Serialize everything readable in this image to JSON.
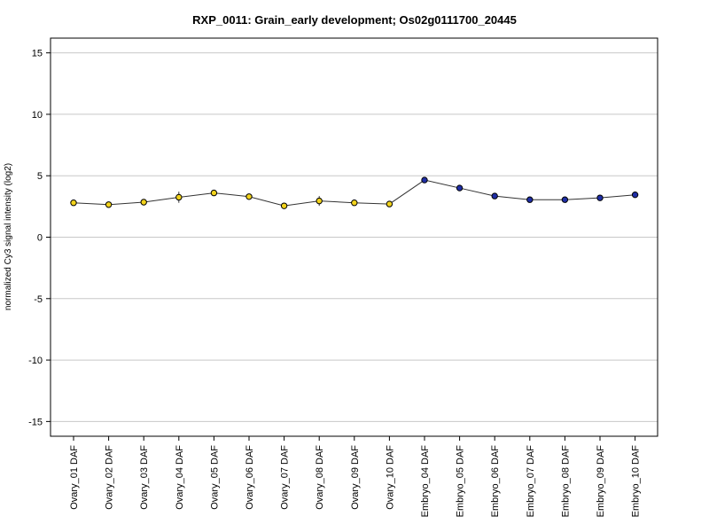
{
  "chart_data": {
    "type": "line",
    "title": "RXP_0011: Grain_early development; Os02g0111700_20445",
    "xlabel": "",
    "ylabel": "normalized Cy3 signal intensity (log2)",
    "ylim": [
      -16.2,
      16.2
    ],
    "yticks": [
      -15,
      -10,
      -5,
      0,
      5,
      10,
      15
    ],
    "grid": true,
    "categories": [
      "Ovary_01 DAF",
      "Ovary_02 DAF",
      "Ovary_03 DAF",
      "Ovary_04 DAF",
      "Ovary_05 DAF",
      "Ovary_06 DAF",
      "Ovary_07 DAF",
      "Ovary_08 DAF",
      "Ovary_09 DAF",
      "Ovary_10 DAF",
      "Embryo_04 DAF",
      "Embryo_05 DAF",
      "Embryo_06 DAF",
      "Embryo_07 DAF",
      "Embryo_08 DAF",
      "Embryo_09 DAF",
      "Embryo_10 DAF"
    ],
    "values": [
      2.8,
      2.65,
      2.85,
      3.25,
      3.6,
      3.3,
      2.55,
      2.95,
      2.8,
      2.7,
      4.65,
      4.0,
      3.35,
      3.05,
      3.05,
      3.2,
      3.45
    ],
    "errors": [
      0.1,
      0.1,
      0.15,
      0.45,
      0.15,
      0.1,
      0.1,
      0.4,
      0.15,
      0.1,
      0.1,
      0.1,
      0.1,
      0.1,
      0.1,
      0.1,
      0.1
    ],
    "colors": {
      "ovary": "#f2d31c",
      "embryo": "#1f2ea6",
      "line": "#333333",
      "grid": "#c8c8c8"
    },
    "point_groups": [
      "ovary",
      "ovary",
      "ovary",
      "ovary",
      "ovary",
      "ovary",
      "ovary",
      "ovary",
      "ovary",
      "ovary",
      "embryo",
      "embryo",
      "embryo",
      "embryo",
      "embryo",
      "embryo",
      "embryo"
    ]
  }
}
